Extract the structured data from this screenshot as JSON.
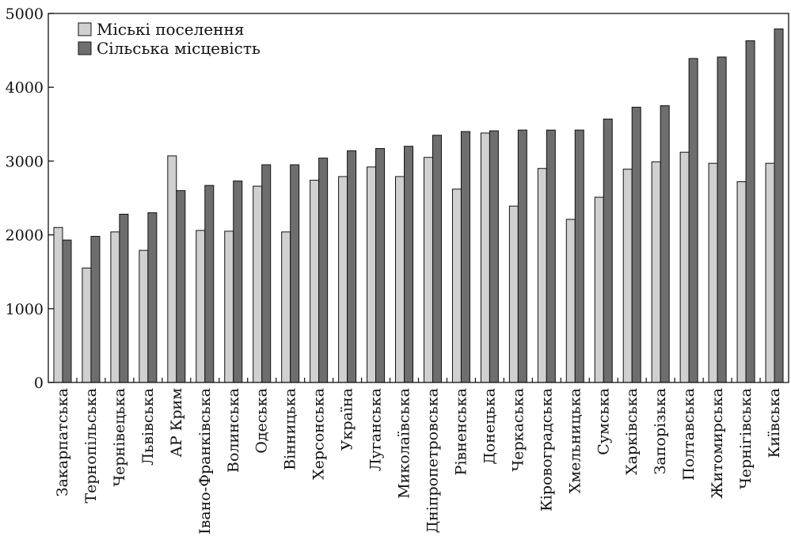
{
  "chart_data": {
    "type": "bar",
    "title": "",
    "xlabel": "",
    "ylabel": "",
    "ylim": [
      0,
      5000
    ],
    "yticks": [
      0,
      1000,
      2000,
      3000,
      4000,
      5000
    ],
    "grid": false,
    "legend_position": "top-left",
    "categories": [
      "Закарпатська",
      "Тернопільська",
      "Чернівецька",
      "Львівська",
      "АР Крим",
      "Івано-Франківська",
      "Волинська",
      "Одеська",
      "Вінницька",
      "Херсонська",
      "Україна",
      "Луганська",
      "Миколаївська",
      "Дніпропетровська",
      "Рівненська",
      "Донецька",
      "Черкаська",
      "Кіровоградська",
      "Хмельницька",
      "Сумська",
      "Харківська",
      "Запорізька",
      "Полтавська",
      "Житомирська",
      "Чернігівська",
      "Київська"
    ],
    "series": [
      {
        "name": "Міські поселення",
        "color": "#d0d0d0",
        "values": [
          2100,
          1550,
          2040,
          1790,
          3070,
          2060,
          2050,
          2660,
          2040,
          2740,
          2790,
          2920,
          2790,
          3050,
          2620,
          3380,
          2390,
          2900,
          2210,
          2510,
          2890,
          2990,
          3120,
          2970,
          2720,
          2970
        ]
      },
      {
        "name": "Сільська місцевість",
        "color": "#6e6e6e",
        "values": [
          1930,
          1980,
          2280,
          2300,
          2600,
          2670,
          2730,
          2950,
          2950,
          3040,
          3140,
          3170,
          3200,
          3350,
          3400,
          3410,
          3420,
          3420,
          3420,
          3570,
          3730,
          3750,
          4390,
          4410,
          4630,
          4790
        ]
      }
    ]
  }
}
